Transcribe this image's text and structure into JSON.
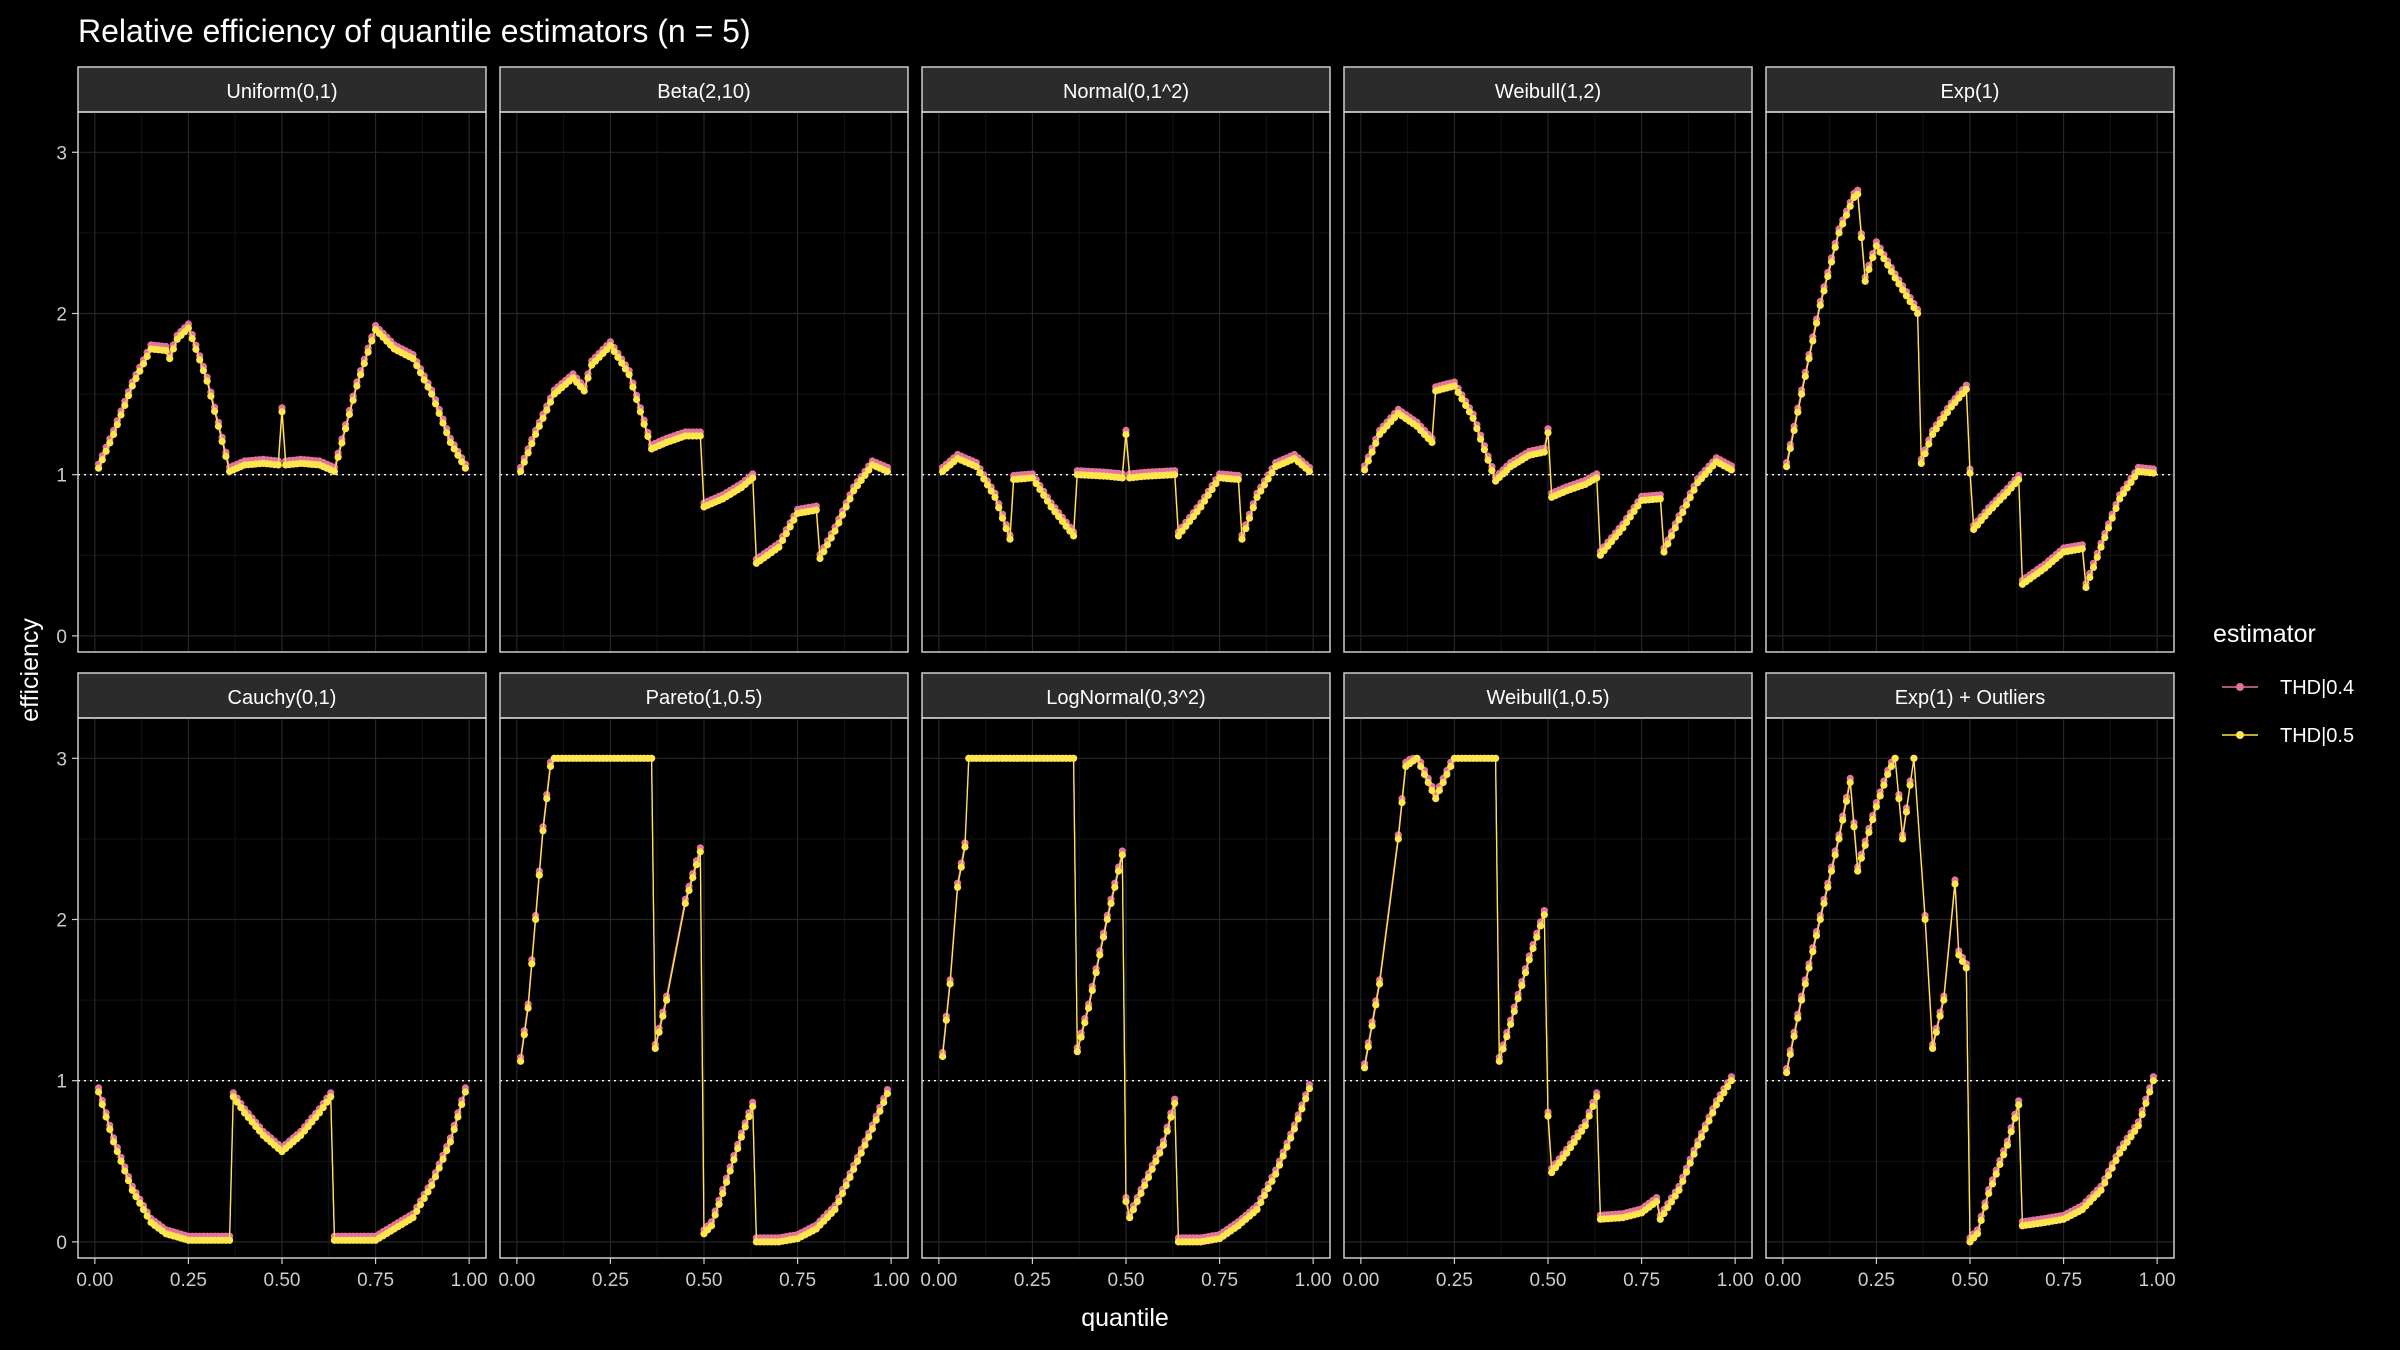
{
  "colors": {
    "background": "#000000",
    "panel_border": "#CCCCCC",
    "strip_fill": "#2B2B2B",
    "grid_major": "#262626",
    "grid_minor": "#141414",
    "reference_line": "#FFFFFF",
    "series_thd04": "#E5739F",
    "series_thd05": "#FFE64D"
  },
  "chart_data": {
    "type": "line",
    "title": "Relative efficiency of quantile estimators (n = 5)",
    "xlabel": "quantile",
    "ylabel": "efficiency",
    "xlim": [
      0,
      1
    ],
    "ylim": [
      0,
      3
    ],
    "x_ticks": [
      "0.00",
      "0.25",
      "0.50",
      "0.75",
      "1.00"
    ],
    "y_ticks": [
      "0",
      "1",
      "2",
      "3"
    ],
    "reference_line": {
      "y": 1,
      "style": "dotted"
    },
    "legend": {
      "title": "estimator",
      "position": "right",
      "entries": [
        "THD|0.4",
        "THD|0.5"
      ]
    },
    "panels": [
      {
        "name": "Uniform(0,1)",
        "points": [
          [
            0.01,
            1.04
          ],
          [
            0.05,
            1.25
          ],
          [
            0.1,
            1.55
          ],
          [
            0.15,
            1.78
          ],
          [
            0.19,
            1.77
          ],
          [
            0.2,
            1.72
          ],
          [
            0.22,
            1.84
          ],
          [
            0.25,
            1.91
          ],
          [
            0.3,
            1.58
          ],
          [
            0.36,
            1.02
          ],
          [
            0.4,
            1.06
          ],
          [
            0.45,
            1.07
          ],
          [
            0.49,
            1.06
          ],
          [
            0.5,
            1.39
          ],
          [
            0.51,
            1.06
          ],
          [
            0.55,
            1.07
          ],
          [
            0.6,
            1.06
          ],
          [
            0.64,
            1.02
          ],
          [
            0.7,
            1.55
          ],
          [
            0.75,
            1.9
          ],
          [
            0.8,
            1.78
          ],
          [
            0.85,
            1.72
          ],
          [
            0.9,
            1.5
          ],
          [
            0.95,
            1.2
          ],
          [
            0.99,
            1.04
          ]
        ]
      },
      {
        "name": "Beta(2,10)",
        "points": [
          [
            0.01,
            1.02
          ],
          [
            0.05,
            1.25
          ],
          [
            0.1,
            1.5
          ],
          [
            0.15,
            1.6
          ],
          [
            0.18,
            1.52
          ],
          [
            0.2,
            1.68
          ],
          [
            0.25,
            1.8
          ],
          [
            0.3,
            1.62
          ],
          [
            0.36,
            1.16
          ],
          [
            0.4,
            1.2
          ],
          [
            0.45,
            1.24
          ],
          [
            0.49,
            1.24
          ],
          [
            0.5,
            0.8
          ],
          [
            0.55,
            0.85
          ],
          [
            0.6,
            0.92
          ],
          [
            0.63,
            0.98
          ],
          [
            0.64,
            0.45
          ],
          [
            0.7,
            0.55
          ],
          [
            0.75,
            0.76
          ],
          [
            0.8,
            0.78
          ],
          [
            0.81,
            0.48
          ],
          [
            0.85,
            0.65
          ],
          [
            0.9,
            0.9
          ],
          [
            0.95,
            1.06
          ],
          [
            0.99,
            1.02
          ]
        ]
      },
      {
        "name": "Normal(0,1^2)",
        "points": [
          [
            0.01,
            1.02
          ],
          [
            0.05,
            1.1
          ],
          [
            0.1,
            1.05
          ],
          [
            0.15,
            0.86
          ],
          [
            0.19,
            0.6
          ],
          [
            0.2,
            0.97
          ],
          [
            0.25,
            0.98
          ],
          [
            0.3,
            0.8
          ],
          [
            0.36,
            0.62
          ],
          [
            0.37,
            1.0
          ],
          [
            0.45,
            0.99
          ],
          [
            0.49,
            0.98
          ],
          [
            0.5,
            1.25
          ],
          [
            0.51,
            0.98
          ],
          [
            0.55,
            0.99
          ],
          [
            0.63,
            1.0
          ],
          [
            0.64,
            0.62
          ],
          [
            0.7,
            0.8
          ],
          [
            0.75,
            0.98
          ],
          [
            0.8,
            0.97
          ],
          [
            0.81,
            0.6
          ],
          [
            0.85,
            0.86
          ],
          [
            0.9,
            1.05
          ],
          [
            0.95,
            1.1
          ],
          [
            0.99,
            1.02
          ]
        ]
      },
      {
        "name": "Weibull(1,2)",
        "points": [
          [
            0.01,
            1.03
          ],
          [
            0.05,
            1.25
          ],
          [
            0.1,
            1.38
          ],
          [
            0.15,
            1.3
          ],
          [
            0.19,
            1.2
          ],
          [
            0.2,
            1.52
          ],
          [
            0.25,
            1.55
          ],
          [
            0.3,
            1.35
          ],
          [
            0.36,
            0.96
          ],
          [
            0.4,
            1.05
          ],
          [
            0.45,
            1.12
          ],
          [
            0.49,
            1.14
          ],
          [
            0.5,
            1.26
          ],
          [
            0.51,
            0.86
          ],
          [
            0.55,
            0.9
          ],
          [
            0.6,
            0.94
          ],
          [
            0.63,
            0.98
          ],
          [
            0.64,
            0.5
          ],
          [
            0.7,
            0.67
          ],
          [
            0.75,
            0.84
          ],
          [
            0.8,
            0.85
          ],
          [
            0.81,
            0.52
          ],
          [
            0.85,
            0.72
          ],
          [
            0.9,
            0.95
          ],
          [
            0.95,
            1.08
          ],
          [
            0.99,
            1.03
          ]
        ]
      },
      {
        "name": "Exp(1)",
        "points": [
          [
            0.01,
            1.05
          ],
          [
            0.05,
            1.5
          ],
          [
            0.1,
            2.05
          ],
          [
            0.15,
            2.5
          ],
          [
            0.19,
            2.72
          ],
          [
            0.2,
            2.74
          ],
          [
            0.22,
            2.2
          ],
          [
            0.25,
            2.42
          ],
          [
            0.3,
            2.22
          ],
          [
            0.36,
            2.0
          ],
          [
            0.37,
            1.07
          ],
          [
            0.4,
            1.25
          ],
          [
            0.45,
            1.42
          ],
          [
            0.49,
            1.53
          ],
          [
            0.5,
            1.01
          ],
          [
            0.51,
            0.66
          ],
          [
            0.55,
            0.77
          ],
          [
            0.6,
            0.89
          ],
          [
            0.63,
            0.97
          ],
          [
            0.64,
            0.32
          ],
          [
            0.7,
            0.42
          ],
          [
            0.75,
            0.52
          ],
          [
            0.8,
            0.54
          ],
          [
            0.81,
            0.3
          ],
          [
            0.85,
            0.55
          ],
          [
            0.9,
            0.85
          ],
          [
            0.95,
            1.02
          ],
          [
            0.99,
            1.01
          ]
        ]
      },
      {
        "name": "Cauchy(0,1)",
        "points": [
          [
            0.01,
            0.93
          ],
          [
            0.05,
            0.62
          ],
          [
            0.1,
            0.32
          ],
          [
            0.15,
            0.12
          ],
          [
            0.19,
            0.05
          ],
          [
            0.25,
            0.01
          ],
          [
            0.3,
            0.01
          ],
          [
            0.36,
            0.01
          ],
          [
            0.37,
            0.9
          ],
          [
            0.4,
            0.8
          ],
          [
            0.45,
            0.66
          ],
          [
            0.5,
            0.56
          ],
          [
            0.55,
            0.66
          ],
          [
            0.6,
            0.8
          ],
          [
            0.63,
            0.9
          ],
          [
            0.64,
            0.01
          ],
          [
            0.7,
            0.01
          ],
          [
            0.75,
            0.01
          ],
          [
            0.8,
            0.08
          ],
          [
            0.85,
            0.15
          ],
          [
            0.9,
            0.35
          ],
          [
            0.95,
            0.62
          ],
          [
            0.99,
            0.93
          ]
        ]
      },
      {
        "name": "Pareto(1,0.5)",
        "points": [
          [
            0.01,
            1.12
          ],
          [
            0.03,
            1.45
          ],
          [
            0.05,
            2.0
          ],
          [
            0.07,
            2.55
          ],
          [
            0.09,
            2.95
          ],
          [
            0.1,
            3.0
          ],
          [
            0.2,
            3.0
          ],
          [
            0.3,
            3.0
          ],
          [
            0.36,
            3.0
          ],
          [
            0.37,
            1.2
          ],
          [
            0.4,
            1.5
          ],
          [
            0.45,
            2.1
          ],
          [
            0.49,
            2.42
          ],
          [
            0.5,
            0.05
          ],
          [
            0.52,
            0.1
          ],
          [
            0.55,
            0.3
          ],
          [
            0.6,
            0.65
          ],
          [
            0.63,
            0.84
          ],
          [
            0.64,
            0.0
          ],
          [
            0.7,
            0.0
          ],
          [
            0.75,
            0.02
          ],
          [
            0.8,
            0.08
          ],
          [
            0.85,
            0.2
          ],
          [
            0.9,
            0.45
          ],
          [
            0.95,
            0.7
          ],
          [
            0.99,
            0.92
          ]
        ]
      },
      {
        "name": "LogNormal(0,3^2)",
        "points": [
          [
            0.01,
            1.15
          ],
          [
            0.03,
            1.6
          ],
          [
            0.05,
            2.2
          ],
          [
            0.07,
            2.45
          ],
          [
            0.08,
            3.0
          ],
          [
            0.15,
            3.0
          ],
          [
            0.25,
            3.0
          ],
          [
            0.36,
            3.0
          ],
          [
            0.37,
            1.18
          ],
          [
            0.4,
            1.45
          ],
          [
            0.45,
            2.0
          ],
          [
            0.49,
            2.4
          ],
          [
            0.5,
            0.25
          ],
          [
            0.51,
            0.15
          ],
          [
            0.55,
            0.35
          ],
          [
            0.6,
            0.6
          ],
          [
            0.63,
            0.86
          ],
          [
            0.64,
            0.0
          ],
          [
            0.7,
            0.0
          ],
          [
            0.75,
            0.02
          ],
          [
            0.8,
            0.1
          ],
          [
            0.85,
            0.2
          ],
          [
            0.9,
            0.42
          ],
          [
            0.95,
            0.7
          ],
          [
            0.99,
            0.95
          ]
        ]
      },
      {
        "name": "Weibull(1,0.5)",
        "points": [
          [
            0.01,
            1.08
          ],
          [
            0.05,
            1.6
          ],
          [
            0.1,
            2.5
          ],
          [
            0.12,
            2.95
          ],
          [
            0.15,
            3.0
          ],
          [
            0.2,
            2.75
          ],
          [
            0.25,
            3.0
          ],
          [
            0.3,
            3.0
          ],
          [
            0.36,
            3.0
          ],
          [
            0.37,
            1.12
          ],
          [
            0.4,
            1.35
          ],
          [
            0.45,
            1.75
          ],
          [
            0.49,
            2.03
          ],
          [
            0.5,
            0.78
          ],
          [
            0.51,
            0.43
          ],
          [
            0.55,
            0.55
          ],
          [
            0.6,
            0.72
          ],
          [
            0.63,
            0.9
          ],
          [
            0.64,
            0.14
          ],
          [
            0.7,
            0.15
          ],
          [
            0.75,
            0.18
          ],
          [
            0.79,
            0.25
          ],
          [
            0.8,
            0.14
          ],
          [
            0.85,
            0.32
          ],
          [
            0.9,
            0.6
          ],
          [
            0.95,
            0.85
          ],
          [
            0.99,
            1.0
          ]
        ]
      },
      {
        "name": "Exp(1) + Outliers",
        "points": [
          [
            0.01,
            1.05
          ],
          [
            0.05,
            1.5
          ],
          [
            0.1,
            2.0
          ],
          [
            0.15,
            2.5
          ],
          [
            0.18,
            2.85
          ],
          [
            0.2,
            2.3
          ],
          [
            0.25,
            2.7
          ],
          [
            0.28,
            2.9
          ],
          [
            0.3,
            3.0
          ],
          [
            0.32,
            2.5
          ],
          [
            0.35,
            3.0
          ],
          [
            0.38,
            2.0
          ],
          [
            0.4,
            1.2
          ],
          [
            0.43,
            1.5
          ],
          [
            0.46,
            2.22
          ],
          [
            0.47,
            1.78
          ],
          [
            0.49,
            1.7
          ],
          [
            0.5,
            0.0
          ],
          [
            0.52,
            0.05
          ],
          [
            0.55,
            0.3
          ],
          [
            0.6,
            0.6
          ],
          [
            0.63,
            0.85
          ],
          [
            0.64,
            0.1
          ],
          [
            0.7,
            0.12
          ],
          [
            0.75,
            0.14
          ],
          [
            0.8,
            0.2
          ],
          [
            0.85,
            0.32
          ],
          [
            0.9,
            0.55
          ],
          [
            0.95,
            0.72
          ],
          [
            0.99,
            1.0
          ]
        ]
      }
    ]
  }
}
